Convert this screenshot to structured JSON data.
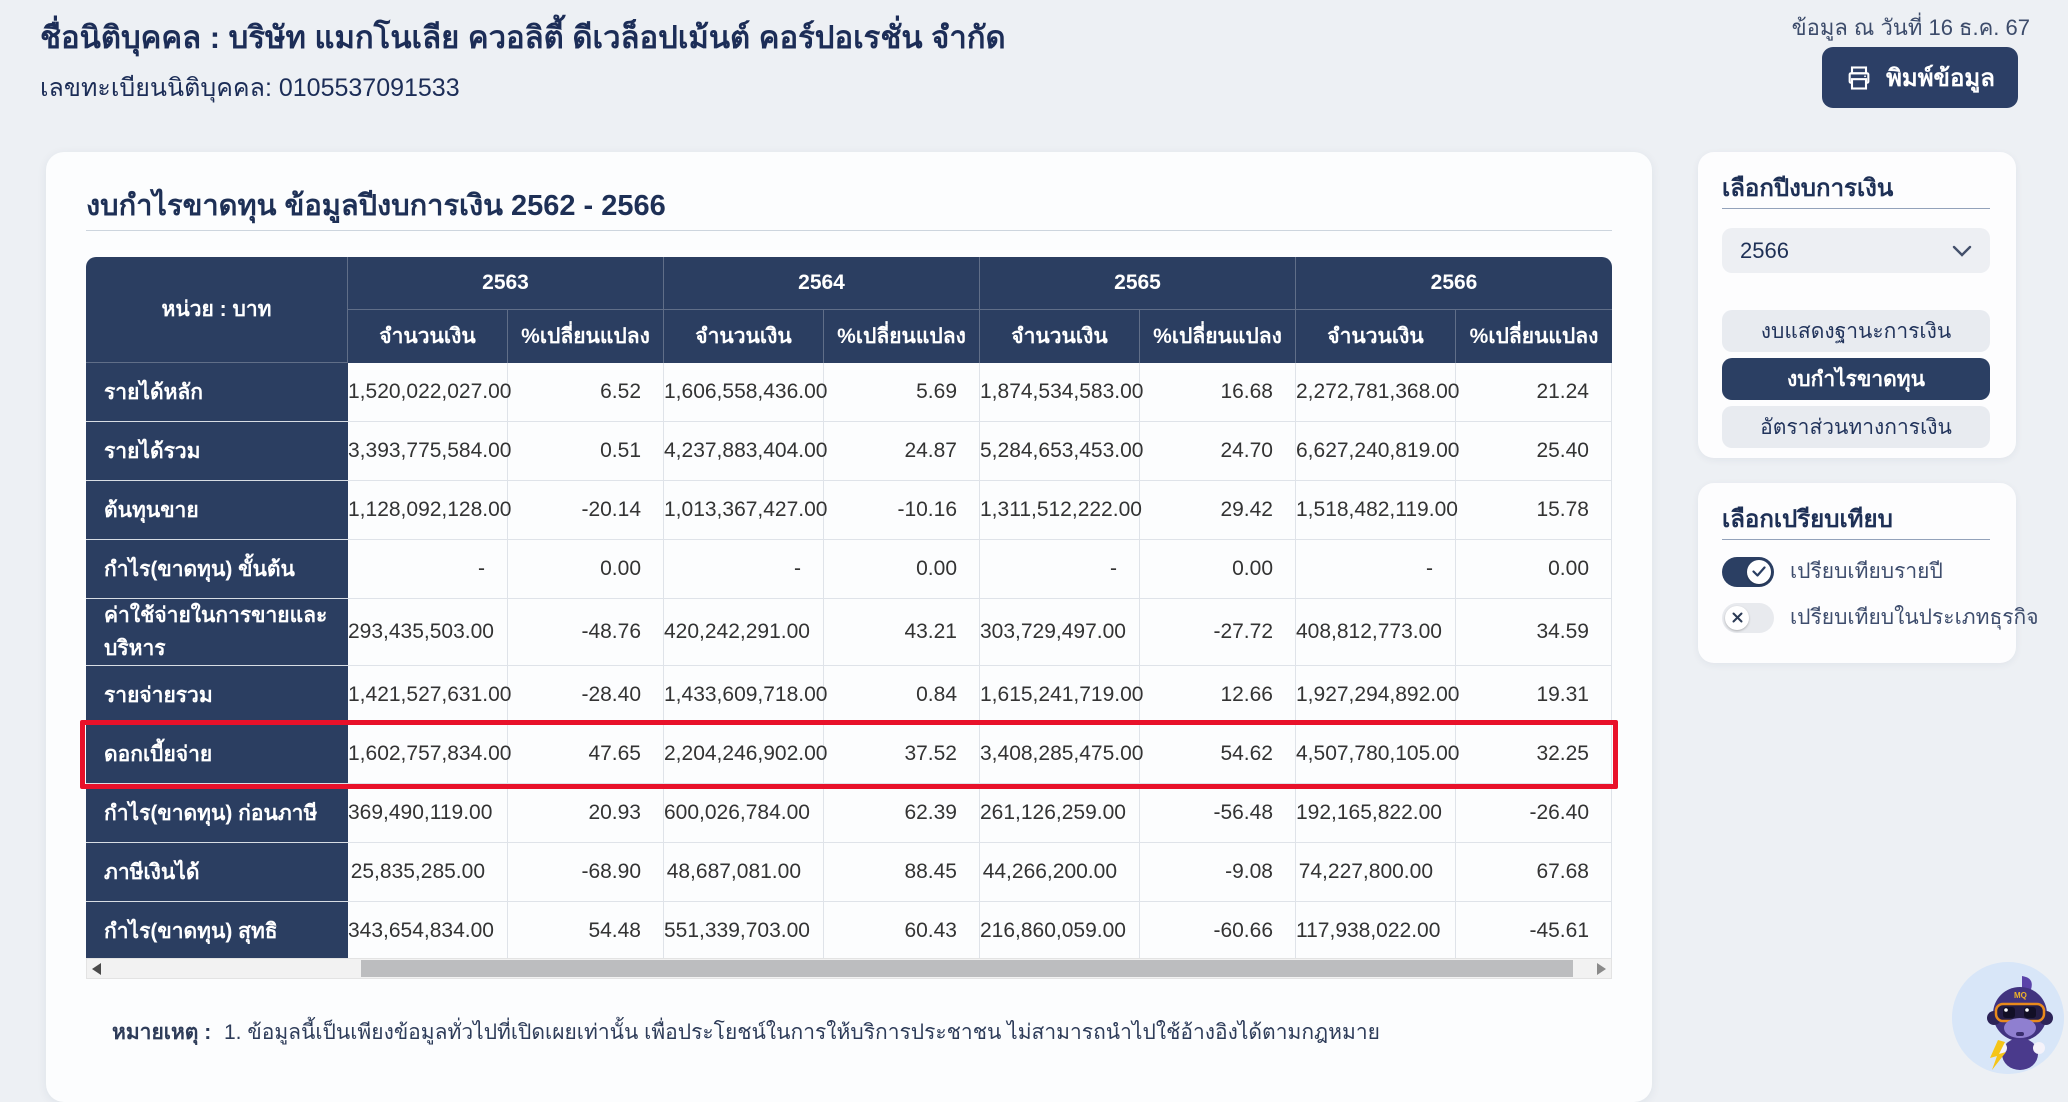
{
  "page": {
    "company_title": "ชื่อนิติบุคคล : บริษัท แมกโนเลีย ควอลิตี้ ดีเวล็อปเม้นต์ คอร์ปอเรชั่น จำกัด",
    "registration": "เลขทะเบียนนิติบุคคล: 0105537091533",
    "data_as_of": "ข้อมูล ณ วันที่ 16 ธ.ค. 67",
    "print_button_label": "พิมพ์ข้อมูล"
  },
  "statement": {
    "title": "งบกำไรขาดทุน ข้อมูลปีงบการเงิน 2562 - 2566",
    "unit_label": "หน่วย : บาท",
    "years": [
      "2563",
      "2564",
      "2565",
      "2566"
    ],
    "amount_header": "จำนวนเงิน",
    "change_header": "%เปลี่ยนแปลง",
    "rows": [
      {
        "label": "รายได้หลัก",
        "highlight": false,
        "values": [
          "1,520,022,027.00",
          "6.52",
          "1,606,558,436.00",
          "5.69",
          "1,874,534,583.00",
          "16.68",
          "2,272,781,368.00",
          "21.24"
        ]
      },
      {
        "label": "รายได้รวม",
        "highlight": false,
        "values": [
          "3,393,775,584.00",
          "0.51",
          "4,237,883,404.00",
          "24.87",
          "5,284,653,453.00",
          "24.70",
          "6,627,240,819.00",
          "25.40"
        ]
      },
      {
        "label": "ต้นทุนขาย",
        "highlight": false,
        "values": [
          "1,128,092,128.00",
          "-20.14",
          "1,013,367,427.00",
          "-10.16",
          "1,311,512,222.00",
          "29.42",
          "1,518,482,119.00",
          "15.78"
        ]
      },
      {
        "label": "กำไร(ขาดทุน) ขั้นต้น",
        "highlight": false,
        "values": [
          "-",
          "0.00",
          "-",
          "0.00",
          "-",
          "0.00",
          "-",
          "0.00"
        ]
      },
      {
        "label": "ค่าใช้จ่ายในการขายและบริหาร",
        "highlight": false,
        "values": [
          "293,435,503.00",
          "-48.76",
          "420,242,291.00",
          "43.21",
          "303,729,497.00",
          "-27.72",
          "408,812,773.00",
          "34.59"
        ]
      },
      {
        "label": "รายจ่ายรวม",
        "highlight": false,
        "values": [
          "1,421,527,631.00",
          "-28.40",
          "1,433,609,718.00",
          "0.84",
          "1,615,241,719.00",
          "12.66",
          "1,927,294,892.00",
          "19.31"
        ]
      },
      {
        "label": "ดอกเบี้ยจ่าย",
        "highlight": true,
        "values": [
          "1,602,757,834.00",
          "47.65",
          "2,204,246,902.00",
          "37.52",
          "3,408,285,475.00",
          "54.62",
          "4,507,780,105.00",
          "32.25"
        ]
      },
      {
        "label": "กำไร(ขาดทุน) ก่อนภาษี",
        "highlight": false,
        "values": [
          "369,490,119.00",
          "20.93",
          "600,026,784.00",
          "62.39",
          "261,126,259.00",
          "-56.48",
          "192,165,822.00",
          "-26.40"
        ]
      },
      {
        "label": "ภาษีเงินได้",
        "highlight": false,
        "values": [
          "25,835,285.00",
          "-68.90",
          "48,687,081.00",
          "88.45",
          "44,266,200.00",
          "-9.08",
          "74,227,800.00",
          "67.68"
        ]
      },
      {
        "label": "กำไร(ขาดทุน) สุทธิ",
        "highlight": false,
        "values": [
          "343,654,834.00",
          "54.48",
          "551,339,703.00",
          "60.43",
          "216,860,059.00",
          "-60.66",
          "117,938,022.00",
          "-45.61"
        ]
      }
    ],
    "note_label": "หมายเหตุ :",
    "note_text": "1. ข้อมูลนี้เป็นเพียงข้อมูลทั่วไปที่เปิดเผยเท่านั้น เพื่อประโยชน์ในการให้บริการประชาชน ไม่สามารถนำไปใช้อ้างอิงได้ตามกฎหมาย"
  },
  "sidebar": {
    "year_panel": {
      "title": "เลือกปีงบการเงิน",
      "selected_year": "2566",
      "buttons": [
        {
          "label": "งบแสดงฐานะการเงิน",
          "active": false
        },
        {
          "label": "งบกำไรขาดทุน",
          "active": true
        },
        {
          "label": "อัตราส่วนทางการเงิน",
          "active": false
        }
      ]
    },
    "compare_panel": {
      "title": "เลือกเปรียบเทียบ",
      "toggles": [
        {
          "label": "เปรียบเทียบรายปี",
          "on": true
        },
        {
          "label": "เปรียบเทียบในประเภทธุรกิจ",
          "on": false
        }
      ]
    }
  },
  "colors": {
    "navy": "#2b3e61",
    "navy_dark_text": "#1c2d57",
    "highlight_red": "#e8112a",
    "page_bg": "#edf0f4",
    "button_inactive_bg": "#e8ebf0"
  }
}
